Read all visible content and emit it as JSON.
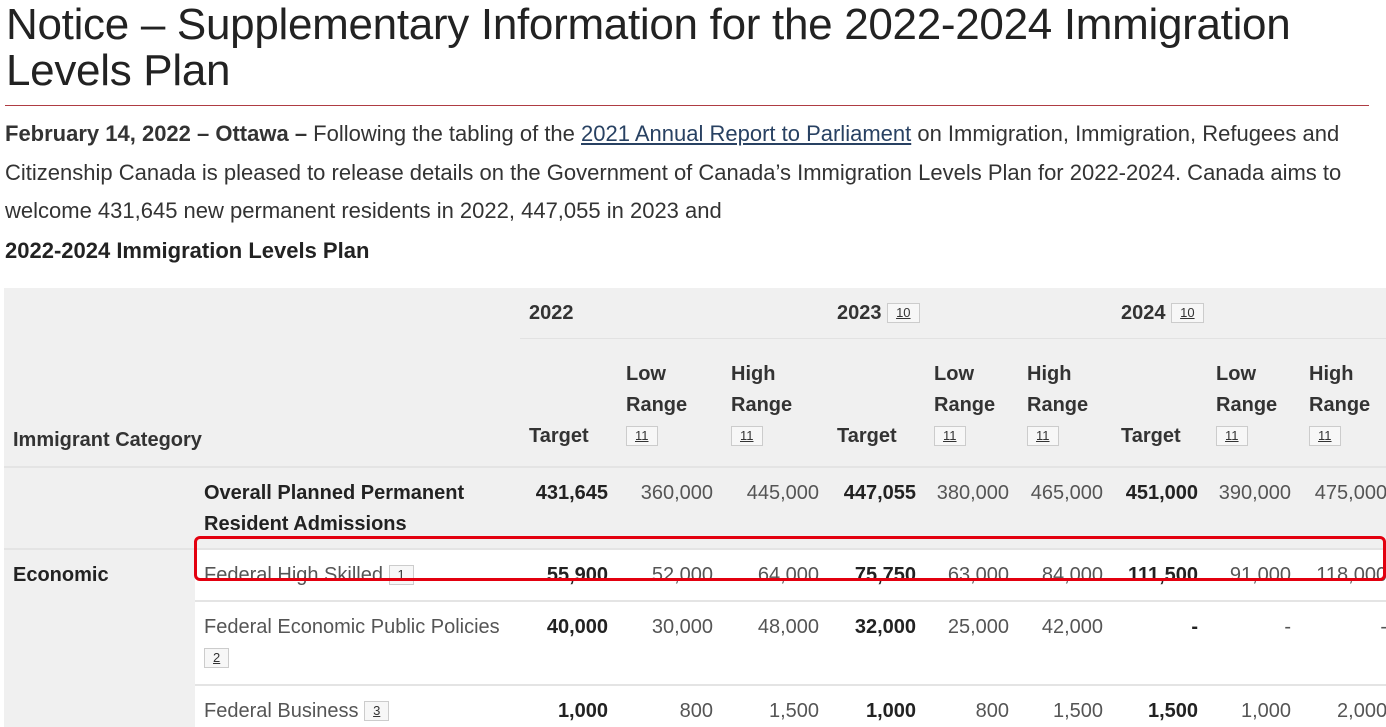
{
  "title": "Notice – Supplementary Information for the 2022-2024 Immigration Levels Plan",
  "intro": {
    "dateline": "February 14, 2022 – Ottawa –",
    "text_before_link": " Following the tabling of the ",
    "link": "2021 Annual Report to Parliament",
    "text_after_link": " on Immigration, Immigration, Refugees and Citizenship Canada is pleased to release details on the Government of Canada’s Immigration Levels Plan for 2022-2024. Canada aims to welcome 431,645 new permanent residents in 2022, 447,055 in 2023 and"
  },
  "table_title": "2022-2024 Immigration Levels Plan",
  "table": {
    "category_header": "Immigrant Category",
    "years": [
      {
        "label": "2022",
        "note": ""
      },
      {
        "label": "2023",
        "note": "10"
      },
      {
        "label": "2024",
        "note": "10"
      }
    ],
    "subheaders": [
      {
        "label": "Target",
        "note": ""
      },
      {
        "label": "Low Range",
        "note": "11"
      },
      {
        "label": "High Range",
        "note": "11"
      }
    ],
    "rows": [
      {
        "category": "",
        "name": "Overall Planned Permanent Resident Admissions",
        "note": "",
        "values": [
          "431,645",
          "360,000",
          "445,000",
          "447,055",
          "380,000",
          "465,000",
          "451,000",
          "390,000",
          "475,000"
        ]
      },
      {
        "category": "Economic",
        "name": "Federal High Skilled",
        "note": "1",
        "highlighted": true,
        "values": [
          "55,900",
          "52,000",
          "64,000",
          "75,750",
          "63,000",
          "84,000",
          "111,500",
          "91,000",
          "118,000"
        ]
      },
      {
        "category": "",
        "name": "Federal Economic Public Policies",
        "note": "2",
        "values": [
          "40,000",
          "30,000",
          "48,000",
          "32,000",
          "25,000",
          "42,000",
          "-",
          "-",
          "-"
        ]
      },
      {
        "category": "",
        "name": "Federal Business",
        "note": "3",
        "values": [
          "1,000",
          "800",
          "1,500",
          "1,000",
          "800",
          "1,500",
          "1,500",
          "1,000",
          "2,000"
        ]
      }
    ]
  },
  "colors": {
    "rule": "#af3c43",
    "highlight": "#e3000f",
    "header_bg": "#f0f0f0",
    "link": "#284162"
  }
}
